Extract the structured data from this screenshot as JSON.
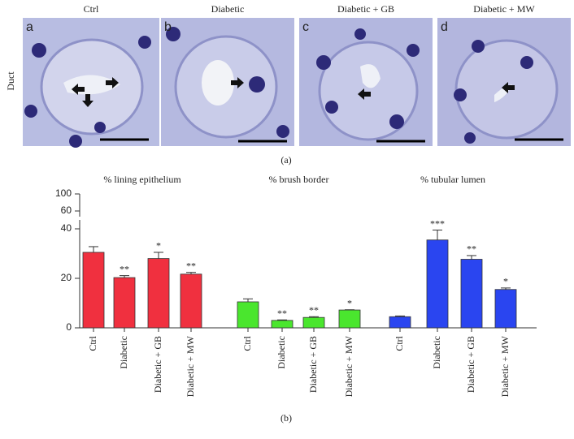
{
  "figure": {
    "panel_a": {
      "row_label": "Duct",
      "panels": [
        {
          "letter": "a",
          "title": "Ctrl"
        },
        {
          "letter": "b",
          "title": "Diabetic"
        },
        {
          "letter": "c",
          "title": "Diabetic + GB"
        },
        {
          "letter": "d",
          "title": "Diabetic + MW"
        }
      ],
      "caption": "(a)"
    },
    "caption_b": "(b)"
  },
  "chart_data": {
    "type": "bar",
    "categories": [
      "Ctrl",
      "Diabetic",
      "Diabetic + GB",
      "Diabetic + MW"
    ],
    "ylim": [
      0,
      100
    ],
    "ybreak": [
      40,
      60
    ],
    "yticks": [
      0,
      20,
      40,
      60,
      100
    ],
    "series": [
      {
        "name": "% lining epithelium",
        "color": "#f0303f",
        "values": [
          30.5,
          20.3,
          28,
          21.7
        ],
        "errors": [
          2.3,
          0.8,
          2.5,
          0.7
        ],
        "annotations": [
          null,
          "**",
          "*",
          "**"
        ]
      },
      {
        "name": "% brush border",
        "color": "#4ae62e",
        "values": [
          10.5,
          3,
          4.2,
          7.2
        ],
        "errors": [
          1.2,
          0.2,
          0.3,
          0.1
        ],
        "annotations": [
          null,
          "**",
          "**",
          "*"
        ]
      },
      {
        "name": "% tubular lumen",
        "color": "#2a45f0",
        "values": [
          4.5,
          35.5,
          27.7,
          15.5
        ],
        "errors": [
          0.3,
          4,
          1.5,
          0.6
        ],
        "annotations": [
          null,
          "***",
          "**",
          "*"
        ]
      }
    ]
  }
}
